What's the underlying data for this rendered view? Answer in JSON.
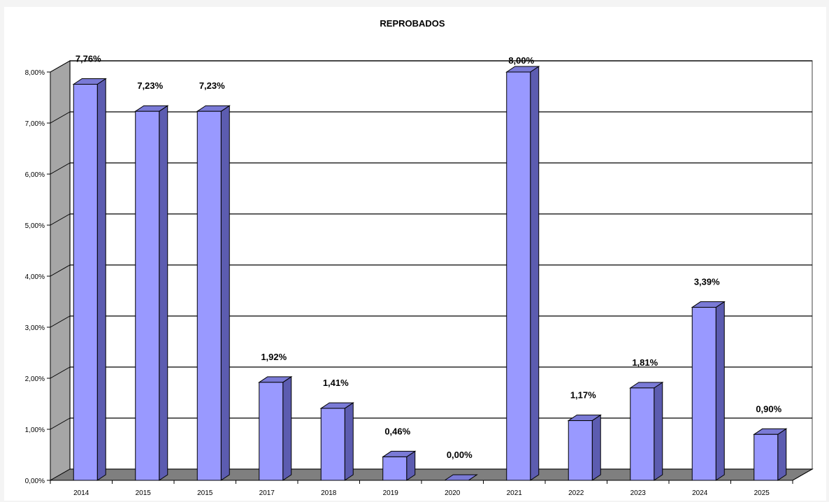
{
  "chart_data": {
    "type": "bar",
    "title": "REPROBADOS",
    "xlabel": "",
    "ylabel": "",
    "categories": [
      "2014",
      "2015",
      "2015",
      "2017",
      "2018",
      "2019",
      "2020",
      "2021",
      "2022",
      "2023",
      "2024",
      "2025"
    ],
    "values": [
      7.76,
      7.23,
      7.23,
      1.92,
      1.41,
      0.46,
      0.0,
      8.0,
      1.17,
      1.81,
      3.39,
      0.9
    ],
    "data_labels": [
      "7,76%",
      "7,23%",
      "7,23%",
      "1,92%",
      "1,41%",
      "0,46%",
      "0,00%",
      "8,00%",
      "1,17%",
      "1,81%",
      "3,39%",
      "0,90%"
    ],
    "ylim": [
      0,
      8
    ],
    "yticks": [
      "0,00%",
      "1,00%",
      "2,00%",
      "3,00%",
      "4,00%",
      "5,00%",
      "6,00%",
      "7,00%",
      "8,00%"
    ],
    "grid": true,
    "three_d": true,
    "legend": "none",
    "colors": {
      "bar_front": "#9999ff",
      "bar_side": "#5c5cb0",
      "bar_top": "#7a7ad6",
      "bar_outline": "#000000",
      "back_wall": "#ffffff",
      "side_wall": "#a6a6a6",
      "floor": "#7f7f7f",
      "gridline": "#000000"
    }
  }
}
